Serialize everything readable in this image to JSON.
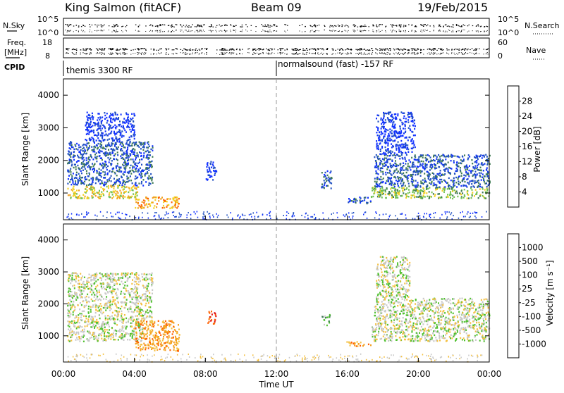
{
  "header": {
    "station": "King Salmon (fitACF)",
    "beam": "Beam 09",
    "date": "19/Feb/2015"
  },
  "strip_labels": {
    "nsky": "N.Sky",
    "nsky_hi": "10^5",
    "nsky_lo": "10^0",
    "nsearch": "N.Search",
    "nsearch_hi": "10^5",
    "nsearch_lo": "10^0",
    "freq_top": "Freq.",
    "freq_unit": "[MHz]",
    "freq_hi": "18",
    "freq_lo": "8",
    "nave": "Nave",
    "nave_hi": "60",
    "nave_lo": "0",
    "cpid": "CPID"
  },
  "cpid_segments": [
    {
      "label": "themis 3300 RF",
      "start_hr": 0
    },
    {
      "label": "normalsound (fast) -157 RF",
      "start_hr": 12
    }
  ],
  "chart_data": [
    {
      "type": "heatmap",
      "panel": "power",
      "x_range_hr": [
        0,
        24
      ],
      "ylabel": "Slant Range [km]",
      "ylim": [
        180,
        4500
      ],
      "yticks": [
        1000,
        2000,
        3000,
        4000
      ],
      "colorbar_label": "Power [dB]",
      "colorbar_ticks": [
        "4",
        "8",
        "12",
        "16",
        "20",
        "24",
        "28"
      ],
      "colorbar_colors": [
        "#1030ff",
        "#2050c0",
        "#3e7a52",
        "#70c050",
        "#f2d020",
        "#f0a020",
        "#ff6000",
        "#e01010"
      ],
      "regions": [
        {
          "x0": 0.2,
          "x1": 4.2,
          "y0": 850,
          "y1": 1250,
          "level": 4
        },
        {
          "x0": 0.2,
          "x1": 5.0,
          "y0": 1250,
          "y1": 2600,
          "level": 1
        },
        {
          "x0": 1.2,
          "x1": 4.0,
          "y0": 2600,
          "y1": 3500,
          "level": 0
        },
        {
          "x0": 4.0,
          "x1": 6.5,
          "y0": 550,
          "y1": 900,
          "level": 5
        },
        {
          "x0": 8.0,
          "x1": 8.6,
          "y0": 1400,
          "y1": 2000,
          "level": 0
        },
        {
          "x0": 14.5,
          "x1": 15.1,
          "y0": 1150,
          "y1": 1700,
          "level": 1
        },
        {
          "x0": 15.9,
          "x1": 17.3,
          "y0": 700,
          "y1": 900,
          "level": 1
        },
        {
          "x0": 17.3,
          "x1": 24.0,
          "y0": 850,
          "y1": 1200,
          "level": 3
        },
        {
          "x0": 17.5,
          "x1": 24.0,
          "y0": 1200,
          "y1": 2200,
          "level": 1
        },
        {
          "x0": 17.6,
          "x1": 19.8,
          "y0": 2200,
          "y1": 3500,
          "level": 0
        }
      ]
    },
    {
      "type": "heatmap",
      "panel": "velocity",
      "x_range_hr": [
        0,
        24
      ],
      "ylabel": "Slant Range [km]",
      "xlabel": "Time UT",
      "ylim": [
        180,
        4500
      ],
      "yticks": [
        1000,
        2000,
        3000,
        4000
      ],
      "xticks": [
        "00:00",
        "04:00",
        "08:00",
        "12:00",
        "16:00",
        "20:00",
        "00:00"
      ],
      "colorbar_label": "Velocity [m s⁻¹]",
      "colorbar_ticks": [
        "1000",
        "500",
        "100",
        "25",
        "-25",
        "-100",
        "-500",
        "-1000"
      ],
      "colorbar_colors": [
        "#1030ff",
        "#2060c0",
        "#3e7a52",
        "#50c030",
        "#c8c8c8",
        "#f4c040",
        "#f4a020",
        "#ff6000",
        "#e01010"
      ],
      "regions": [
        {
          "x0": 0.2,
          "x1": 4.5,
          "y0": 850,
          "y1": 1300,
          "level": 4
        },
        {
          "x0": 0.2,
          "x1": 5.0,
          "y0": 1300,
          "y1": 3000,
          "level": 4
        },
        {
          "x0": 4.0,
          "x1": 6.5,
          "y0": 550,
          "y1": 1500,
          "level": 6
        },
        {
          "x0": 8.1,
          "x1": 8.6,
          "y0": 1400,
          "y1": 1800,
          "level": 7
        },
        {
          "x0": 14.5,
          "x1": 15.0,
          "y0": 1350,
          "y1": 1700,
          "level": 3
        },
        {
          "x0": 15.9,
          "x1": 17.3,
          "y0": 700,
          "y1": 850,
          "level": 6
        },
        {
          "x0": 17.3,
          "x1": 24.0,
          "y0": 850,
          "y1": 1300,
          "level": 4
        },
        {
          "x0": 17.5,
          "x1": 24.0,
          "y0": 1300,
          "y1": 2200,
          "level": 4
        },
        {
          "x0": 17.6,
          "x1": 19.5,
          "y0": 2200,
          "y1": 3500,
          "level": 4
        }
      ]
    }
  ]
}
